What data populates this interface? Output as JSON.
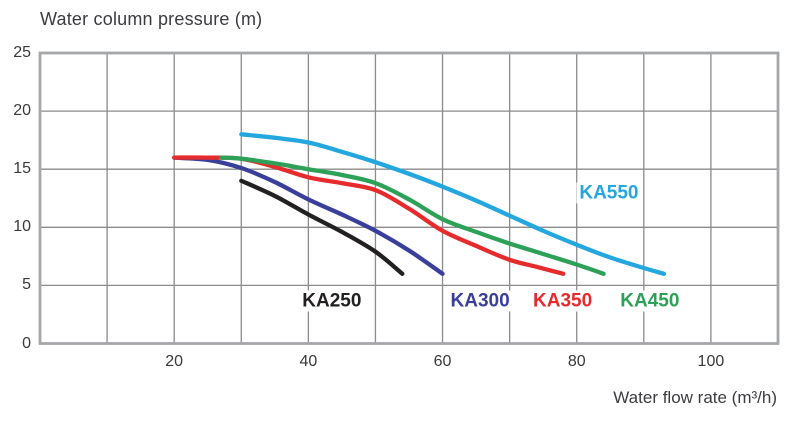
{
  "colors": {
    "grid": "#8b8b8d",
    "plot_border": "#a5a7aa",
    "text": "#3c3c40"
  },
  "chart_data": {
    "type": "line",
    "title": "Water column pressure (m)",
    "xlabel": "Water flow rate (m³/h)",
    "ylabel": "",
    "xlim": [
      0,
      110
    ],
    "ylim": [
      0,
      25
    ],
    "x_ticks": [
      20,
      40,
      60,
      80,
      100
    ],
    "y_ticks": [
      0,
      5,
      10,
      15,
      20,
      25
    ],
    "x_grid_step": 10,
    "y_grid_step": 5,
    "grid": true,
    "legend_position": "inline-labels",
    "series": [
      {
        "name": "KA250",
        "color": "#232021",
        "label_at": [
          43.5,
          3.7
        ],
        "points": [
          [
            30,
            14
          ],
          [
            35,
            12.7
          ],
          [
            40,
            11.1
          ],
          [
            45,
            9.6
          ],
          [
            50,
            7.9
          ],
          [
            54,
            6
          ]
        ]
      },
      {
        "name": "KA300",
        "color": "#3a3f9a",
        "label_at": [
          65.6,
          3.65
        ],
        "points": [
          [
            20,
            16
          ],
          [
            25,
            15.8
          ],
          [
            30,
            15.1
          ],
          [
            35,
            13.9
          ],
          [
            40,
            12.4
          ],
          [
            45,
            11.1
          ],
          [
            50,
            9.7
          ],
          [
            55,
            8
          ],
          [
            60,
            6
          ]
        ]
      },
      {
        "name": "KA350",
        "color": "#e62b2d",
        "label_at": [
          77.9,
          3.65
        ],
        "points": [
          [
            20,
            16
          ],
          [
            25,
            16
          ],
          [
            30,
            15.9
          ],
          [
            35,
            15.2
          ],
          [
            40,
            14.3
          ],
          [
            45,
            13.8
          ],
          [
            50,
            13.2
          ],
          [
            55,
            11.6
          ],
          [
            60,
            9.7
          ],
          [
            65,
            8.4
          ],
          [
            70,
            7.2
          ],
          [
            74,
            6.6
          ],
          [
            78,
            6
          ]
        ]
      },
      {
        "name": "KA450",
        "color": "#2ea158",
        "label_at": [
          90.9,
          3.65
        ],
        "points": [
          [
            27,
            16
          ],
          [
            30,
            15.9
          ],
          [
            35,
            15.5
          ],
          [
            40,
            15
          ],
          [
            45,
            14.5
          ],
          [
            50,
            13.8
          ],
          [
            55,
            12.4
          ],
          [
            60,
            10.7
          ],
          [
            65,
            9.6
          ],
          [
            70,
            8.6
          ],
          [
            75,
            7.7
          ],
          [
            80,
            6.8
          ],
          [
            84,
            6
          ]
        ]
      },
      {
        "name": "KA550",
        "color": "#24a7df",
        "label_at": [
          84.8,
          12.95
        ],
        "points": [
          [
            30,
            18
          ],
          [
            35,
            17.7
          ],
          [
            40,
            17.3
          ],
          [
            45,
            16.5
          ],
          [
            50,
            15.6
          ],
          [
            55,
            14.6
          ],
          [
            60,
            13.5
          ],
          [
            65,
            12.3
          ],
          [
            70,
            11
          ],
          [
            75,
            9.7
          ],
          [
            80,
            8.5
          ],
          [
            85,
            7.4
          ],
          [
            90,
            6.5
          ],
          [
            93,
            6
          ]
        ]
      }
    ]
  }
}
